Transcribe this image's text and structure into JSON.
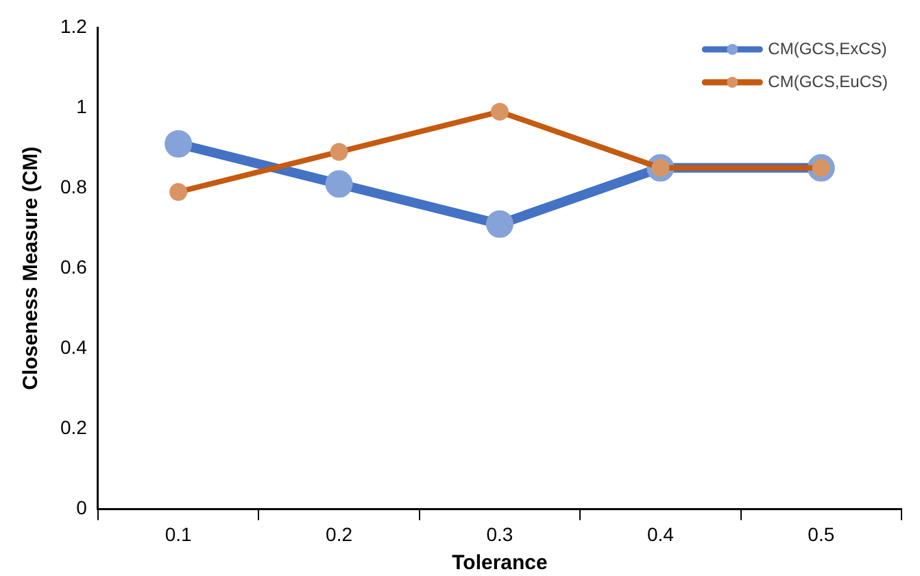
{
  "chart_data": {
    "type": "line",
    "xlabel": "Tolerance",
    "ylabel": "Closeness Measure (CM)",
    "categories": [
      "0.1",
      "0.2",
      "0.3",
      "0.4",
      "0.5"
    ],
    "series": [
      {
        "name": "CM(GCS,ExCS)",
        "color": "#4472c4",
        "values": [
          0.91,
          0.81,
          0.71,
          0.85,
          0.85
        ]
      },
      {
        "name": "CM(GCS,EuCS)",
        "color": "#c55a11",
        "values": [
          0.79,
          0.89,
          0.99,
          0.85,
          0.85
        ]
      }
    ],
    "ylim": [
      0,
      1.2
    ],
    "yticks": [
      0,
      0.2,
      0.4,
      0.6,
      0.8,
      1,
      1.2
    ],
    "grid": false,
    "legend": "top right",
    "marker": "circle",
    "line_style": "solid"
  }
}
